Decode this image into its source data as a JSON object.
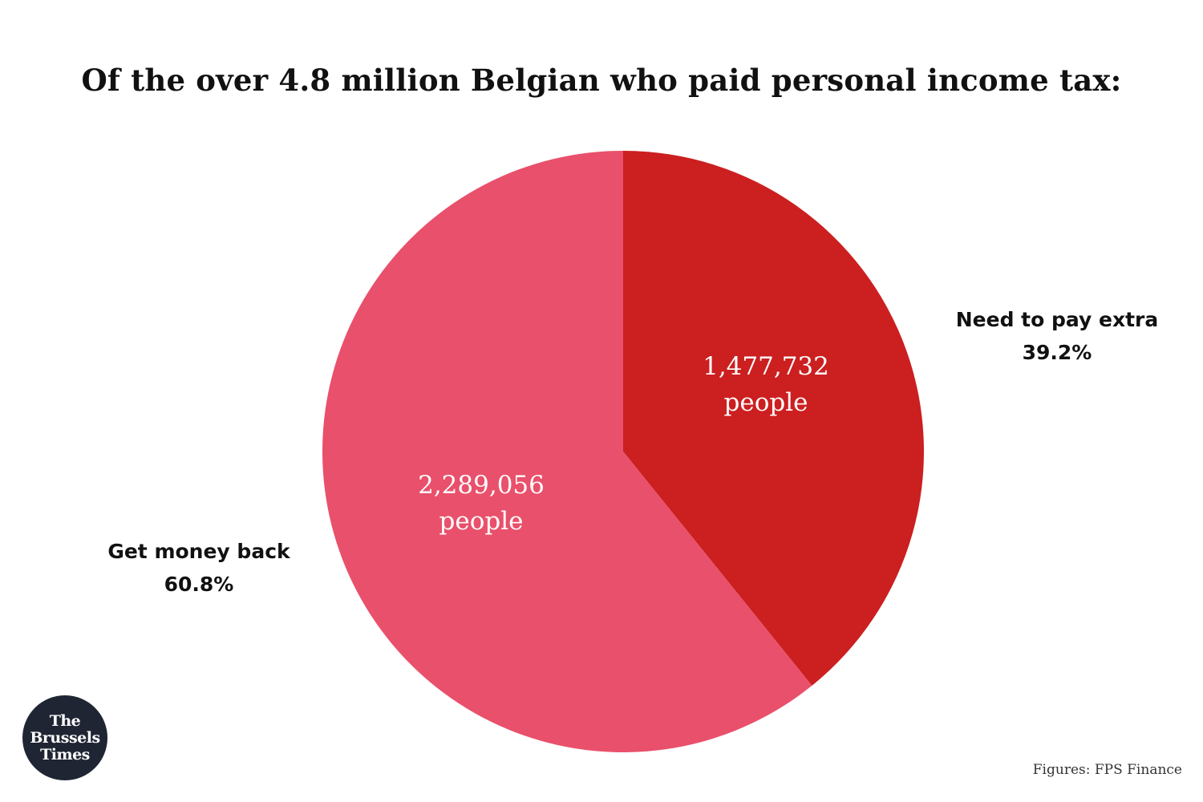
{
  "chart_data": {
    "type": "pie",
    "title": "Of the over 4.8 million Belgian who paid personal income tax:",
    "slices": [
      {
        "name": "Need to pay extra",
        "percent_label": "39.2%",
        "value": 39.2,
        "count_label": "1,477,732",
        "unit_label": "people",
        "color": "#cc1f20"
      },
      {
        "name": "Get money back",
        "percent_label": "60.8%",
        "value": 60.8,
        "count_label": "2,289,056",
        "unit_label": "people",
        "color": "#e9506b"
      }
    ],
    "start_angle": "12 o'clock",
    "direction": "clockwise",
    "legend": "none"
  },
  "logo": {
    "lines": [
      "The",
      "Brussels",
      "Times"
    ]
  },
  "source": "Figures: FPS Finance"
}
